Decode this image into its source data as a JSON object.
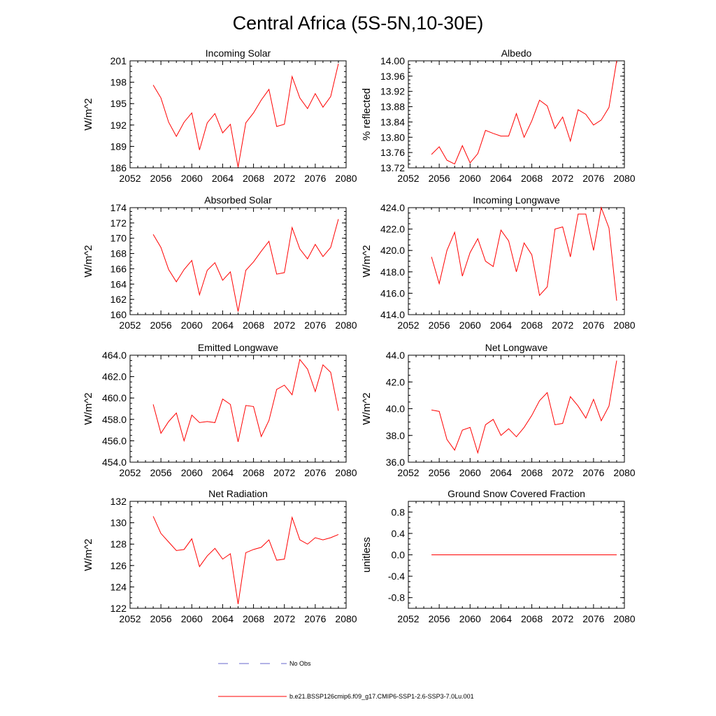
{
  "figure": {
    "title": "Central Africa (5S-5N,10-30E)"
  },
  "legend": {
    "entries": [
      {
        "label": "No Obs",
        "color": "#6666cc",
        "dash": true
      },
      {
        "label": "b.e21.BSSP126cmip6.f09_g17.CMIP6-SSP1-2.6-SSP3-7.0Lu.001",
        "color": "#ff0000",
        "dash": false
      }
    ]
  },
  "chart_data": [
    {
      "type": "line",
      "title": "Incoming Solar",
      "xlabel": "",
      "ylabel": "W/m^2",
      "xlim": [
        2052,
        2080
      ],
      "ylim": [
        186,
        201
      ],
      "xticks": [
        "2052",
        "2056",
        "2060",
        "2064",
        "2068",
        "2072",
        "2076",
        "2080"
      ],
      "yticks": [
        "186",
        "189",
        "192",
        "195",
        "198",
        "201"
      ],
      "x": [
        2055,
        2056,
        2057,
        2058,
        2059,
        2060,
        2061,
        2062,
        2063,
        2064,
        2065,
        2066,
        2067,
        2068,
        2069,
        2070,
        2071,
        2072,
        2073,
        2074,
        2075,
        2076,
        2077,
        2078,
        2079
      ],
      "series": [
        {
          "color": "#ff0000",
          "values": [
            197.6,
            195.8,
            192.4,
            190.4,
            192.4,
            193.7,
            188.5,
            192.3,
            193.6,
            190.9,
            192.1,
            186.1,
            192.3,
            193.7,
            195.5,
            197.0,
            191.8,
            192.1,
            198.8,
            195.8,
            194.3,
            196.4,
            194.5,
            196.0,
            200.6
          ]
        }
      ]
    },
    {
      "type": "line",
      "title": "Albedo",
      "xlabel": "",
      "ylabel": "% reflected",
      "xlim": [
        2052,
        2080
      ],
      "ylim": [
        13.72,
        14.0
      ],
      "xticks": [
        "2052",
        "2056",
        "2060",
        "2064",
        "2068",
        "2072",
        "2076",
        "2080"
      ],
      "yticks": [
        "13.72",
        "13.76",
        "13.80",
        "13.84",
        "13.88",
        "13.92",
        "13.96",
        "14.00"
      ],
      "x": [
        2055,
        2056,
        2057,
        2058,
        2059,
        2060,
        2061,
        2062,
        2063,
        2064,
        2065,
        2066,
        2067,
        2068,
        2069,
        2070,
        2071,
        2072,
        2073,
        2074,
        2075,
        2076,
        2077,
        2078,
        2079
      ],
      "series": [
        {
          "color": "#ff0000",
          "values": [
            13.755,
            13.775,
            13.74,
            13.73,
            13.778,
            13.733,
            13.757,
            13.818,
            13.81,
            13.803,
            13.803,
            13.862,
            13.8,
            13.843,
            13.897,
            13.882,
            13.823,
            13.853,
            13.79,
            13.872,
            13.86,
            13.832,
            13.845,
            13.878,
            14.0
          ]
        }
      ]
    },
    {
      "type": "line",
      "title": "Absorbed Solar",
      "xlabel": "",
      "ylabel": "W/m^2",
      "xlim": [
        2052,
        2080
      ],
      "ylim": [
        160,
        174
      ],
      "xticks": [
        "2052",
        "2056",
        "2060",
        "2064",
        "2068",
        "2072",
        "2076",
        "2080"
      ],
      "yticks": [
        "160",
        "162",
        "164",
        "166",
        "168",
        "170",
        "172",
        "174"
      ],
      "x": [
        2055,
        2056,
        2057,
        2058,
        2059,
        2060,
        2061,
        2062,
        2063,
        2064,
        2065,
        2066,
        2067,
        2068,
        2069,
        2070,
        2071,
        2072,
        2073,
        2074,
        2075,
        2076,
        2077,
        2078,
        2079
      ],
      "series": [
        {
          "color": "#ff0000",
          "values": [
            170.5,
            168.8,
            165.9,
            164.3,
            165.9,
            167.1,
            162.6,
            165.8,
            166.8,
            164.5,
            165.6,
            160.4,
            165.8,
            166.9,
            168.3,
            169.6,
            165.3,
            165.5,
            171.4,
            168.6,
            167.3,
            169.2,
            167.6,
            168.8,
            172.5
          ]
        }
      ]
    },
    {
      "type": "line",
      "title": "Incoming Longwave",
      "xlabel": "",
      "ylabel": "W/m^2",
      "xlim": [
        2052,
        2080
      ],
      "ylim": [
        414.0,
        424.0
      ],
      "xticks": [
        "2052",
        "2056",
        "2060",
        "2064",
        "2068",
        "2072",
        "2076",
        "2080"
      ],
      "yticks": [
        "414.0",
        "416.0",
        "418.0",
        "420.0",
        "422.0",
        "424.0"
      ],
      "x": [
        2055,
        2056,
        2057,
        2058,
        2059,
        2060,
        2061,
        2062,
        2063,
        2064,
        2065,
        2066,
        2067,
        2068,
        2069,
        2070,
        2071,
        2072,
        2073,
        2074,
        2075,
        2076,
        2077,
        2078,
        2079
      ],
      "series": [
        {
          "color": "#ff0000",
          "values": [
            419.4,
            416.9,
            420.0,
            421.7,
            417.6,
            419.8,
            421.1,
            419.0,
            418.5,
            421.9,
            420.9,
            418.0,
            420.7,
            419.6,
            415.8,
            416.6,
            422.0,
            422.2,
            419.4,
            423.4,
            423.4,
            420.0,
            424.0,
            422.1,
            415.3
          ]
        }
      ]
    },
    {
      "type": "line",
      "title": "Emitted Longwave",
      "xlabel": "",
      "ylabel": "W/m^2",
      "xlim": [
        2052,
        2080
      ],
      "ylim": [
        454.0,
        464.0
      ],
      "xticks": [
        "2052",
        "2056",
        "2060",
        "2064",
        "2068",
        "2072",
        "2076",
        "2080"
      ],
      "yticks": [
        "454.0",
        "456.0",
        "458.0",
        "460.0",
        "462.0",
        "464.0"
      ],
      "x": [
        2055,
        2056,
        2057,
        2058,
        2059,
        2060,
        2061,
        2062,
        2063,
        2064,
        2065,
        2066,
        2067,
        2068,
        2069,
        2070,
        2071,
        2072,
        2073,
        2074,
        2075,
        2076,
        2077,
        2078,
        2079
      ],
      "series": [
        {
          "color": "#ff0000",
          "values": [
            459.4,
            456.7,
            457.8,
            458.6,
            456.0,
            458.4,
            457.7,
            457.8,
            457.7,
            459.9,
            459.4,
            455.9,
            459.3,
            459.2,
            456.4,
            457.9,
            460.8,
            461.2,
            460.3,
            463.6,
            462.7,
            460.6,
            463.1,
            462.4,
            458.8
          ]
        }
      ]
    },
    {
      "type": "line",
      "title": "Net Longwave",
      "xlabel": "",
      "ylabel": "W/m^2",
      "xlim": [
        2052,
        2080
      ],
      "ylim": [
        36.0,
        44.0
      ],
      "xticks": [
        "2052",
        "2056",
        "2060",
        "2064",
        "2068",
        "2072",
        "2076",
        "2080"
      ],
      "yticks": [
        "36.0",
        "38.0",
        "40.0",
        "42.0",
        "44.0"
      ],
      "x": [
        2055,
        2056,
        2057,
        2058,
        2059,
        2060,
        2061,
        2062,
        2063,
        2064,
        2065,
        2066,
        2067,
        2068,
        2069,
        2070,
        2071,
        2072,
        2073,
        2074,
        2075,
        2076,
        2077,
        2078,
        2079
      ],
      "series": [
        {
          "color": "#ff0000",
          "values": [
            39.9,
            39.8,
            37.7,
            36.9,
            38.4,
            38.6,
            36.7,
            38.8,
            39.2,
            38.0,
            38.5,
            37.9,
            38.6,
            39.5,
            40.6,
            41.2,
            38.8,
            38.9,
            40.9,
            40.2,
            39.3,
            40.7,
            39.1,
            40.2,
            43.6
          ]
        }
      ]
    },
    {
      "type": "line",
      "title": "Net Radiation",
      "xlabel": "",
      "ylabel": "W/m^2",
      "xlim": [
        2052,
        2080
      ],
      "ylim": [
        122,
        132
      ],
      "xticks": [
        "2052",
        "2056",
        "2060",
        "2064",
        "2068",
        "2072",
        "2076",
        "2080"
      ],
      "yticks": [
        "122",
        "124",
        "126",
        "128",
        "130",
        "132"
      ],
      "x": [
        2055,
        2056,
        2057,
        2058,
        2059,
        2060,
        2061,
        2062,
        2063,
        2064,
        2065,
        2066,
        2067,
        2068,
        2069,
        2070,
        2071,
        2072,
        2073,
        2074,
        2075,
        2076,
        2077,
        2078,
        2079
      ],
      "series": [
        {
          "color": "#ff0000",
          "values": [
            130.6,
            129.0,
            128.2,
            127.4,
            127.5,
            128.5,
            125.9,
            126.9,
            127.6,
            126.6,
            127.1,
            122.4,
            127.2,
            127.5,
            127.7,
            128.4,
            126.5,
            126.6,
            130.5,
            128.4,
            128.0,
            128.6,
            128.4,
            128.6,
            128.9
          ]
        }
      ]
    },
    {
      "type": "line",
      "title": "Ground Snow Covered Fraction",
      "xlabel": "",
      "ylabel": "unitless",
      "xlim": [
        2052,
        2080
      ],
      "ylim": [
        -1.0,
        1.0
      ],
      "xticks": [
        "2052",
        "2056",
        "2060",
        "2064",
        "2068",
        "2072",
        "2076",
        "2080"
      ],
      "yticks": [
        "-0.8",
        "-0.4",
        "0.0",
        "0.4",
        "0.8"
      ],
      "yticks_values": [
        -0.8,
        -0.4,
        0.0,
        0.4,
        0.8
      ],
      "x": [
        2055,
        2079
      ],
      "series": [
        {
          "color": "#ff0000",
          "values": [
            0.0,
            0.0
          ]
        }
      ]
    }
  ]
}
